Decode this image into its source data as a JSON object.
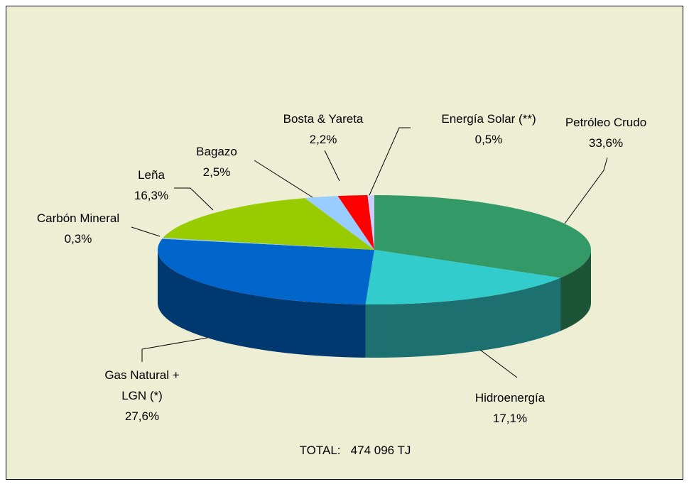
{
  "chart_data": {
    "type": "pie3d",
    "categories": [
      "Petróleo Crudo",
      "Hidroenergía",
      "Gas Natural + LGN (*)",
      "Carbón Mineral",
      "Leña",
      "Bagazo",
      "Bosta & Yareta",
      "Energía Solar (**)"
    ],
    "values": [
      33.6,
      17.1,
      27.6,
      0.3,
      16.3,
      2.5,
      2.2,
      0.5
    ],
    "value_labels": [
      "33,6%",
      "17,1%",
      "27,6%",
      "0,3%",
      "16,3%",
      "2,5%",
      "2,2%",
      "0,5%"
    ],
    "colors": [
      "#339966",
      "#33cccc",
      "#0066cc",
      "#99ccff",
      "#99cc00",
      "#99ccff",
      "#ff0000",
      "#ccccff"
    ],
    "annotation": "TOTAL:   474 096 TJ"
  }
}
